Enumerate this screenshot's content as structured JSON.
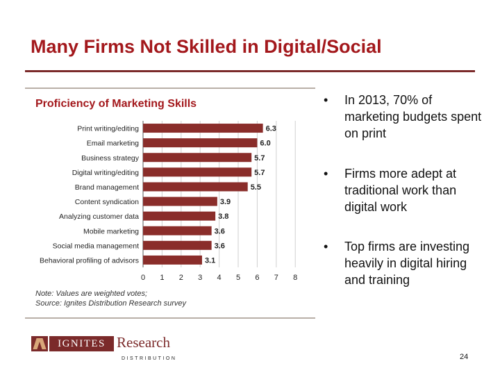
{
  "slide": {
    "title": "Many Firms Not Skilled in Digital/Social",
    "page_number": "24"
  },
  "chart_data": {
    "type": "bar",
    "orientation": "horizontal",
    "title": "Proficiency of Marketing Skills",
    "categories": [
      "Print writing/editing",
      "Email marketing",
      "Business strategy",
      "Digital writing/editing",
      "Brand management",
      "Content syndication",
      "Analyzing customer data",
      "Mobile marketing",
      "Social media management",
      "Behavioral profiling of advisors"
    ],
    "values": [
      6.3,
      6.0,
      5.7,
      5.7,
      5.5,
      3.9,
      3.8,
      3.6,
      3.6,
      3.1
    ],
    "value_labels": [
      "6.3",
      "6.0",
      "5.7",
      "5.7",
      "5.5",
      "3.9",
      "3.8",
      "3.6",
      "3.6",
      "3.1"
    ],
    "xticks": [
      "0",
      "1",
      "2",
      "3",
      "4",
      "5",
      "6",
      "7",
      "8"
    ],
    "xlim": [
      0,
      8
    ],
    "grid": true,
    "bar_color": "#8a2d2a",
    "note_lines": [
      "Note: Values are weighted votes;",
      "Source:  Ignites Distribution Research survey"
    ]
  },
  "bullets": [
    "In 2013, 70% of marketing budgets spent on print",
    "Firms more adept at traditional work than digital work",
    "Top firms are investing heavily in digital hiring and training"
  ],
  "bullet_symbol": "•",
  "logo": {
    "band_text": "IGNITES",
    "word": "Research",
    "sub": "DISTRIBUTION"
  },
  "colors": {
    "title": "#a3181c",
    "accent": "#7b2a2a"
  }
}
